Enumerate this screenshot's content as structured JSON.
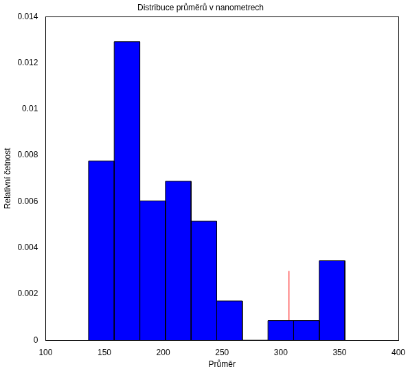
{
  "chart_data": {
    "type": "histogram",
    "title": "Distribuce průměrů v nanometrech",
    "x_label": "Průměr",
    "y_label": "Relativní četnost",
    "bins": [
      136.5,
      158.3,
      180.1,
      201.9,
      223.7,
      245.5,
      267.3,
      289.1,
      310.9,
      332.7,
      354.5
    ],
    "values": [
      0.00776,
      0.01292,
      0.00603,
      0.00688,
      0.00515,
      0.0017,
      0,
      0.00085,
      0.00085,
      0.00344
    ],
    "color": "#0000ff",
    "xlim": [
      100,
      400
    ],
    "xticks": [
      100,
      150,
      200,
      250,
      300,
      350,
      400
    ],
    "ylim": [
      0,
      0.014
    ],
    "yticks": [
      0,
      0.002,
      0.004,
      0.006,
      0.008,
      0.01,
      0.012,
      0.014
    ],
    "grid": false,
    "vline": {
      "x": 307,
      "y": [
        0,
        0.003
      ],
      "color": "#ff0000"
    }
  }
}
